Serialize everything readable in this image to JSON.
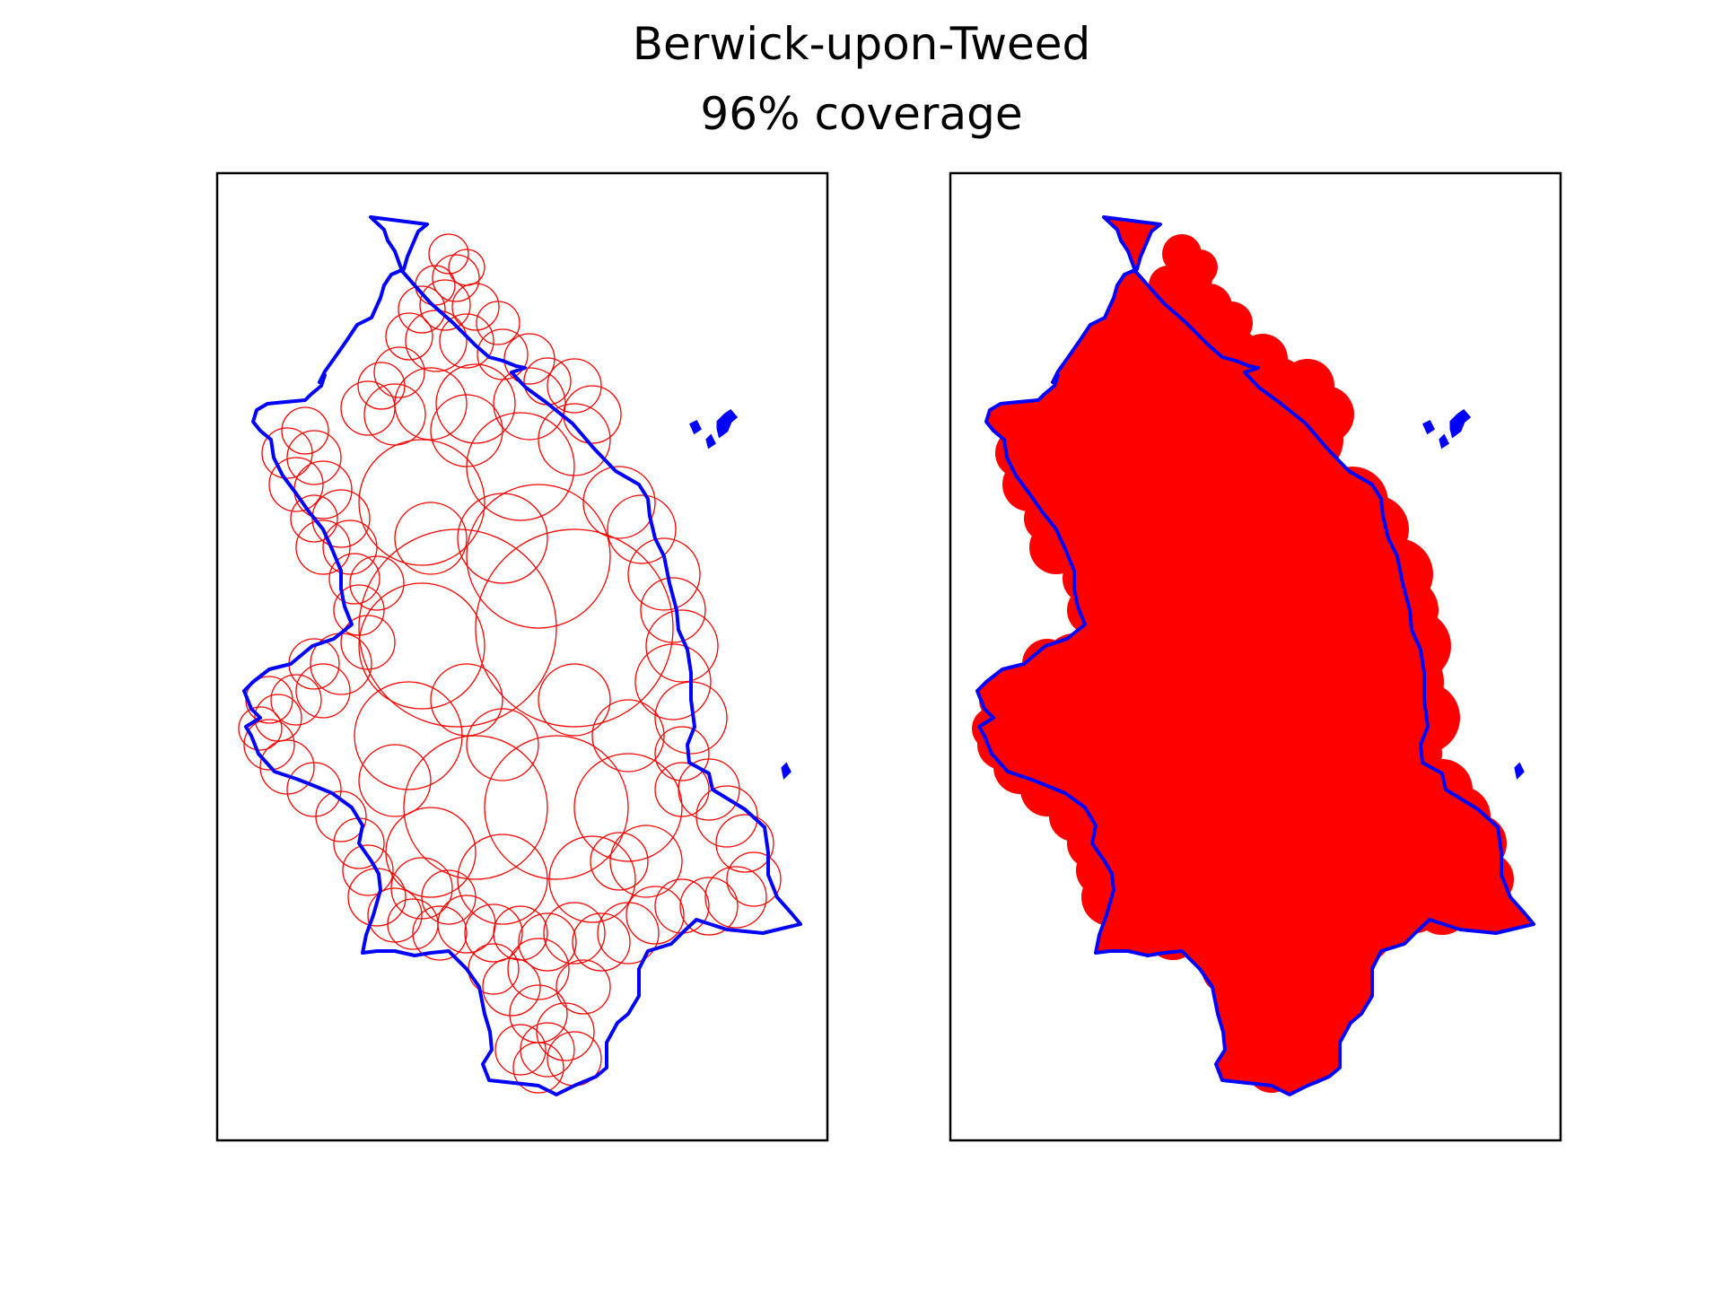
{
  "chart_data": {
    "type": "map",
    "title": "Berwick-upon-Tweed",
    "subtitle": "96% coverage",
    "grid": false,
    "colors": {
      "outline": "#0000ff",
      "circles": "#ff0000",
      "fill": "#ff0000",
      "frame": "#000000"
    },
    "panels": [
      {
        "style": "circle-outlines",
        "coverage_percent": 96
      },
      {
        "style": "filled-union",
        "coverage_percent": 96
      }
    ]
  }
}
